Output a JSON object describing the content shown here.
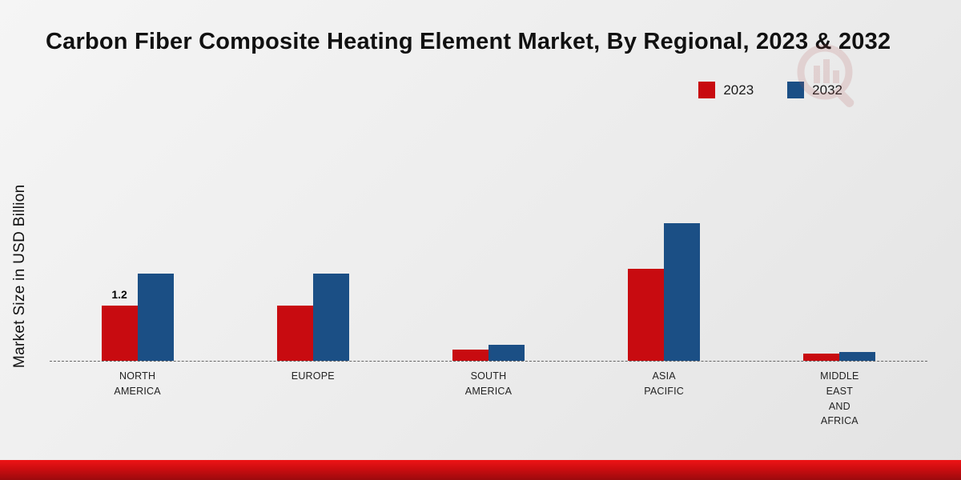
{
  "title": "Carbon Fiber Composite Heating Element Market, By Regional, 2023 & 2032",
  "ylabel": "Market Size in USD Billion",
  "colors": {
    "series_2023": "#c80b10",
    "series_2032": "#1b4f85",
    "footer": "#cc0d10"
  },
  "legend": {
    "position": "top-right",
    "items": [
      "2023",
      "2032"
    ]
  },
  "chart_data": {
    "type": "bar",
    "categories": [
      "NORTH\nAMERICA",
      "EUROPE",
      "SOUTH\nAMERICA",
      "ASIA\nPACIFIC",
      "MIDDLE\nEAST\nAND\nAFRICA"
    ],
    "series": [
      {
        "name": "2023",
        "color": "#c80b10",
        "values": [
          1.2,
          1.2,
          0.25,
          2.0,
          0.15
        ]
      },
      {
        "name": "2032",
        "color": "#1b4f85",
        "values": [
          1.9,
          1.9,
          0.35,
          3.0,
          0.2
        ]
      }
    ],
    "bar_labels": [
      {
        "series": "2023",
        "category_index": 0,
        "text": "1.2"
      }
    ],
    "title": "Carbon Fiber Composite Heating Element Market, By Regional, 2023 & 2032",
    "xlabel": "",
    "ylabel": "Market Size in USD Billion",
    "ylim": [
      0,
      3.5
    ],
    "grid": false,
    "baseline_style": "dashed"
  }
}
